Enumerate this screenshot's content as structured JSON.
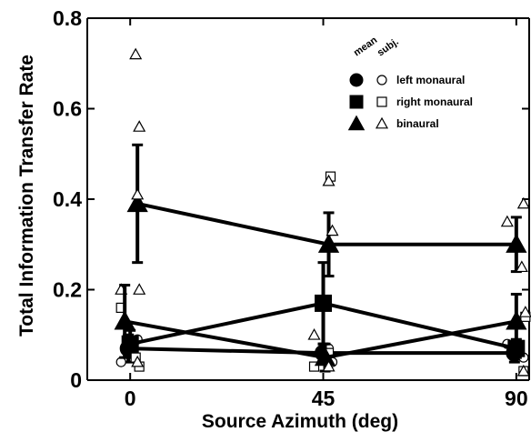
{
  "chart_data": {
    "type": "scatter",
    "title": "",
    "xlabel": "Source Azimuth (deg)",
    "ylabel": "Total Information Transfer Rate",
    "x_ticks": [
      0,
      45,
      90
    ],
    "y_ticks": [
      "0",
      "0.2",
      "0.4",
      "0.6",
      "0.8"
    ],
    "xlim": [
      -10,
      93
    ],
    "ylim": [
      0,
      0.8
    ],
    "legend": {
      "position": "top-right",
      "column_headers": [
        "mean",
        "subj."
      ],
      "entries": [
        {
          "label": "left monaural",
          "marker": "circle"
        },
        {
          "label": "right monaural",
          "marker": "square"
        },
        {
          "label": "binaural",
          "marker": "triangle"
        }
      ]
    },
    "series": [
      {
        "marker": "circle",
        "mean": [
          {
            "x": 0,
            "y": 0.07,
            "err": 0.03
          },
          {
            "x": 45,
            "y": 0.06,
            "err": 0.02
          },
          {
            "x": 90,
            "y": 0.06,
            "err": 0.02
          }
        ],
        "subjects": [
          {
            "x": 0,
            "y": 0.09
          },
          {
            "x": 0,
            "y": 0.04
          },
          {
            "x": 45,
            "y": 0.07
          },
          {
            "x": 45,
            "y": 0.04
          },
          {
            "x": 90,
            "y": 0.05
          },
          {
            "x": 90,
            "y": 0.08
          }
        ]
      },
      {
        "marker": "square",
        "mean": [
          {
            "x": 0,
            "y": 0.08,
            "err": 0.03
          },
          {
            "x": 45,
            "y": 0.17,
            "err": 0.09
          },
          {
            "x": 90,
            "y": 0.07,
            "err": 0.02
          }
        ],
        "subjects": [
          {
            "x": 0,
            "y": 0.16
          },
          {
            "x": 0,
            "y": 0.05
          },
          {
            "x": 0,
            "y": 0.03
          },
          {
            "x": 45,
            "y": 0.45
          },
          {
            "x": 45,
            "y": 0.03
          },
          {
            "x": 45,
            "y": 0.06
          },
          {
            "x": 90,
            "y": 0.14
          },
          {
            "x": 90,
            "y": 0.02
          }
        ]
      },
      {
        "marker": "triangle",
        "mean": [
          {
            "x": 0,
            "y": 0.39,
            "err": 0.13
          },
          {
            "x": 45,
            "y": 0.3,
            "err": 0.07
          },
          {
            "x": 90,
            "y": 0.3,
            "err": 0.06
          }
        ],
        "subjects": [
          {
            "x": 0,
            "y": 0.72
          },
          {
            "x": 0,
            "y": 0.56
          },
          {
            "x": 0,
            "y": 0.41
          },
          {
            "x": 0,
            "y": 0.2
          },
          {
            "x": 45,
            "y": 0.44
          },
          {
            "x": 45,
            "y": 0.33
          },
          {
            "x": 90,
            "y": 0.39
          },
          {
            "x": 90,
            "y": 0.35
          },
          {
            "x": 90,
            "y": 0.25
          }
        ]
      },
      {
        "marker": "triangle",
        "mean": [
          {
            "x": 0,
            "y": 0.13,
            "err": 0.08
          },
          {
            "x": 45,
            "y": 0.05,
            "err": 0.03
          },
          {
            "x": 90,
            "y": 0.13,
            "err": 0.06
          }
        ],
        "subjects": [
          {
            "x": 0,
            "y": 0.2
          },
          {
            "x": 0,
            "y": 0.04
          },
          {
            "x": 45,
            "y": 0.1
          },
          {
            "x": 45,
            "y": 0.03
          },
          {
            "x": 90,
            "y": 0.15
          },
          {
            "x": 90,
            "y": 0.02
          }
        ]
      }
    ]
  }
}
